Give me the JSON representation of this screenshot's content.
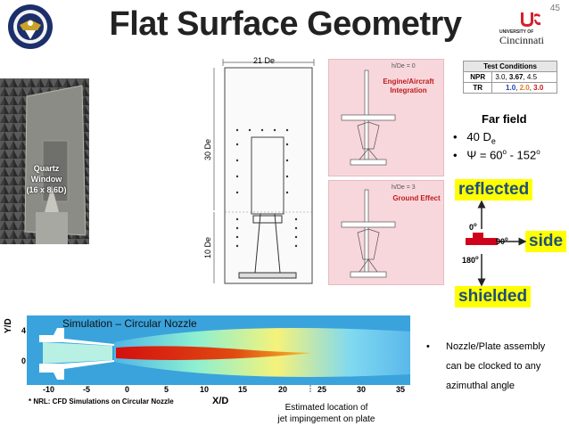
{
  "slide": {
    "title": "Flat Surface Geometry",
    "page_number": "45"
  },
  "logos": {
    "left": "navy-seal",
    "right_top": "UNIVERSITY OF",
    "right_name": "Cincinnati"
  },
  "photo": {
    "label_line1": "Quartz",
    "label_line2": "Window",
    "label_line3": "(16 x 8.6D)"
  },
  "drawing": {
    "width_label": "21 De",
    "height_label": "30 De",
    "bottom_label": "10 De"
  },
  "panels": [
    {
      "header": "h/De = 0",
      "caption_line1": "Engine/Aircraft",
      "caption_line2": "Integration"
    },
    {
      "header": "h/De = 3",
      "caption_line1": "Ground Effect",
      "caption_line2": ""
    }
  ],
  "test_conditions": {
    "title": "Test Conditions",
    "npr_label": "NPR",
    "npr_values_plain": "3.0, ",
    "npr_values_bold": "3.67",
    "npr_values_tail": ", 4.5",
    "tr_label": "TR",
    "tr_1": "1.0",
    "tr_2": "2.0",
    "tr_3": "3.0",
    "sep": ", "
  },
  "far_field": {
    "title": "Far field",
    "bullet1_main": "40 D",
    "bullet1_sub": "e",
    "bullet2_main": "Ψ = 60",
    "bullet2_deg": "o",
    "bullet2_mid": " - 152",
    "bullet2_deg2": "o"
  },
  "orientation": {
    "reflected": "reflected",
    "side": "side",
    "shielded": "shielded",
    "angle_0": "0o",
    "angle_90": "90o",
    "angle_180": "180o"
  },
  "simulation": {
    "title": "Simulation – Circular Nozzle",
    "y_axis_label": "Y/D",
    "x_axis_label": "X/D",
    "x_ticks": [
      "-10",
      "-5",
      "0",
      "5",
      "10",
      "15",
      "20",
      "25",
      "30",
      "35"
    ],
    "y_ticks": [
      "4",
      "0"
    ],
    "note": "* NRL: CFD Simulations on Circular Nozzle",
    "impingement_line1": "Estimated location of",
    "impingement_line2": "jet impingement on plate"
  },
  "nozzle_bullet": {
    "line1": "Nozzle/Plate assembly",
    "line2": "can be clocked to any",
    "line3": "azimuthal angle"
  }
}
